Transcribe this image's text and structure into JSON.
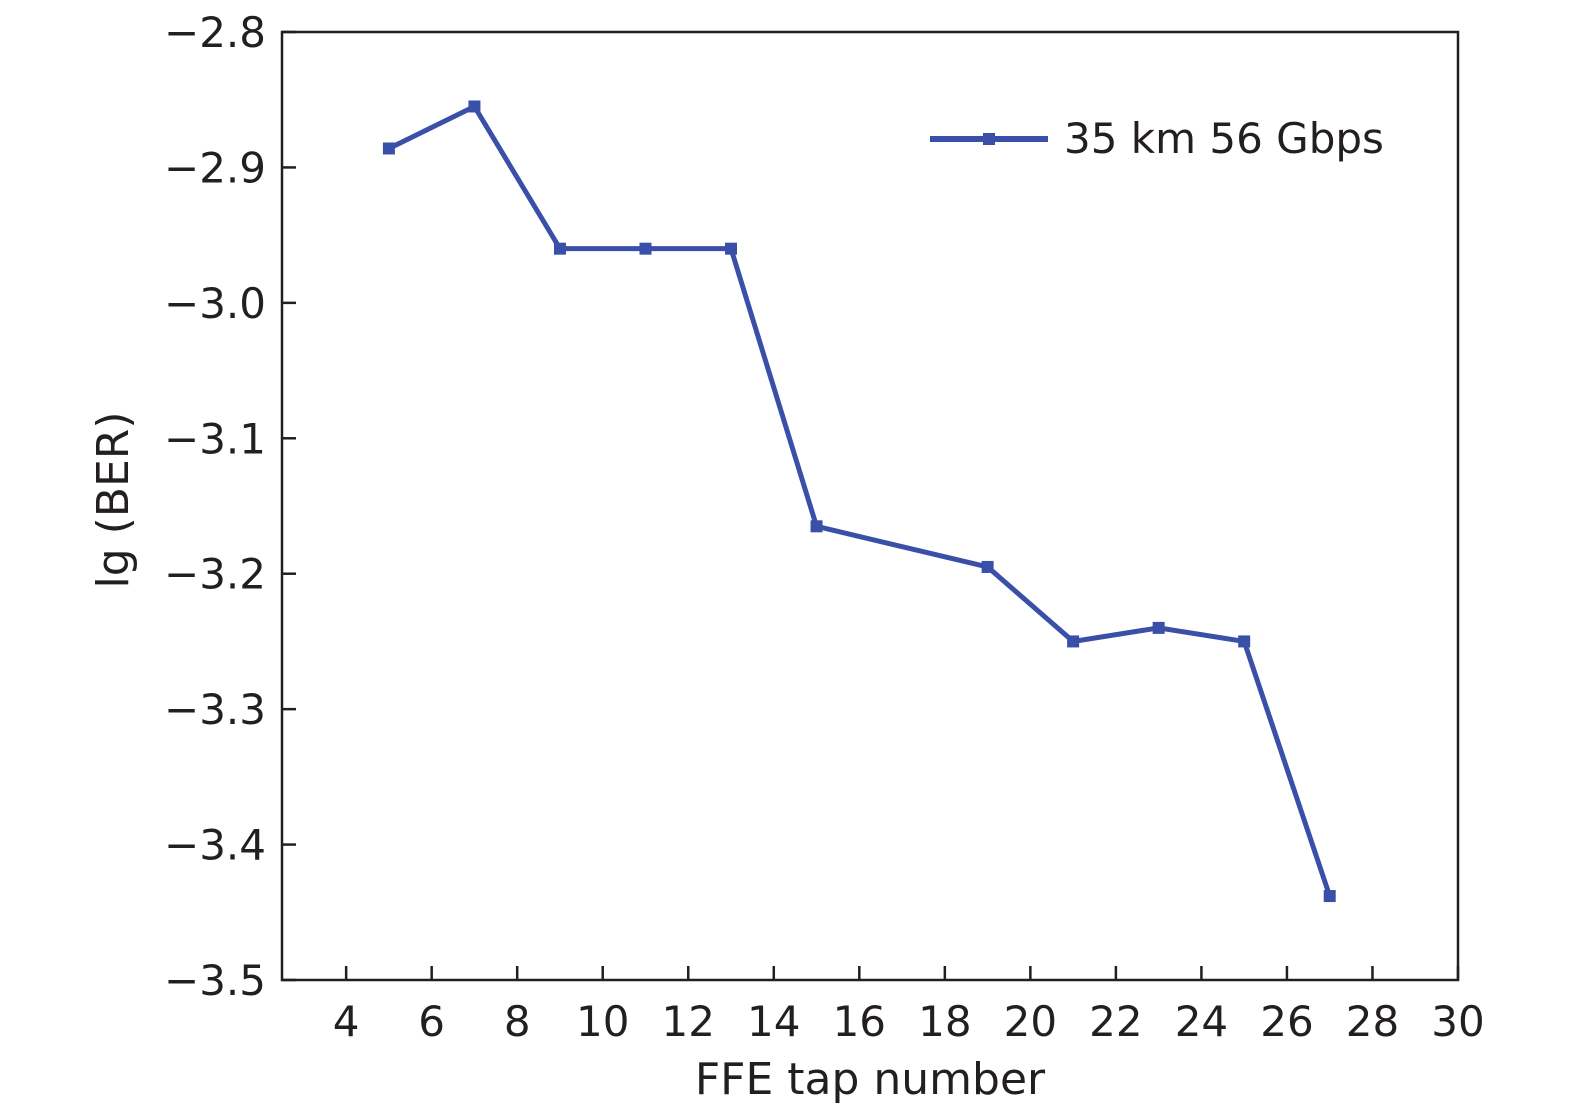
{
  "chart_data": {
    "type": "line",
    "title": "",
    "xlabel": "FFE tap number",
    "ylabel": "lg (BER)",
    "xlim": [
      2.5,
      30
    ],
    "ylim": [
      -3.5,
      -2.8
    ],
    "xticks": [
      4,
      6,
      8,
      10,
      12,
      14,
      16,
      18,
      20,
      22,
      24,
      26,
      28,
      30
    ],
    "xtick_labels": [
      "4",
      "6",
      "8",
      "10",
      "12",
      "14",
      "16",
      "18",
      "20",
      "22",
      "24",
      "26",
      "28",
      "30"
    ],
    "yticks": [
      -2.8,
      -2.9,
      -3.0,
      -3.1,
      -3.2,
      -3.3,
      -3.4,
      -3.5
    ],
    "ytick_labels": [
      "−2.8",
      "−2.9",
      "−3.0",
      "−3.1",
      "−3.2",
      "−3.3",
      "−3.4",
      "−3.5"
    ],
    "grid": false,
    "legend_position": "top-right",
    "series": [
      {
        "name": "35 km 56 Gbps",
        "color": "#3a4fa8",
        "marker": "square",
        "x": [
          5,
          7,
          9,
          11,
          13,
          15,
          19,
          21,
          23,
          25,
          27
        ],
        "y": [
          -2.886,
          -2.855,
          -2.96,
          -2.96,
          -2.96,
          -3.165,
          -3.195,
          -3.25,
          -3.24,
          -3.25,
          -3.438
        ]
      }
    ]
  }
}
